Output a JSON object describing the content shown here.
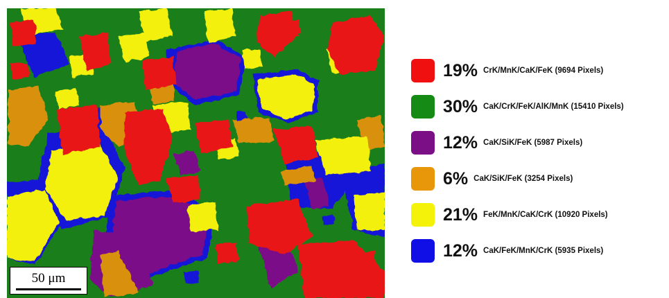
{
  "scale_bar": {
    "label": "50 μm"
  },
  "legend": {
    "items": [
      {
        "color": "#f01010",
        "percent": "19%",
        "label": "CrK/MnK/CaK/FeK (9694 Pixels)"
      },
      {
        "color": "#158a15",
        "percent": "30%",
        "label": "CaK/CrK/FeK/AlK/MnK (15410 Pixels)"
      },
      {
        "color": "#7a0f86",
        "percent": "12%",
        "label": "CaK/SiK/FeK (5987 Pixels)"
      },
      {
        "color": "#e8960a",
        "percent": "6%",
        "label": "CaK/SiK/FeK (3254 Pixels)"
      },
      {
        "color": "#f5f20a",
        "percent": "21%",
        "label": "FeK/MnK/CaK/CrK (10920 Pixels)"
      },
      {
        "color": "#1010e6",
        "percent": "12%",
        "label": "CaK/FeK/MnK/CrK (5935 Pixels)"
      }
    ]
  }
}
